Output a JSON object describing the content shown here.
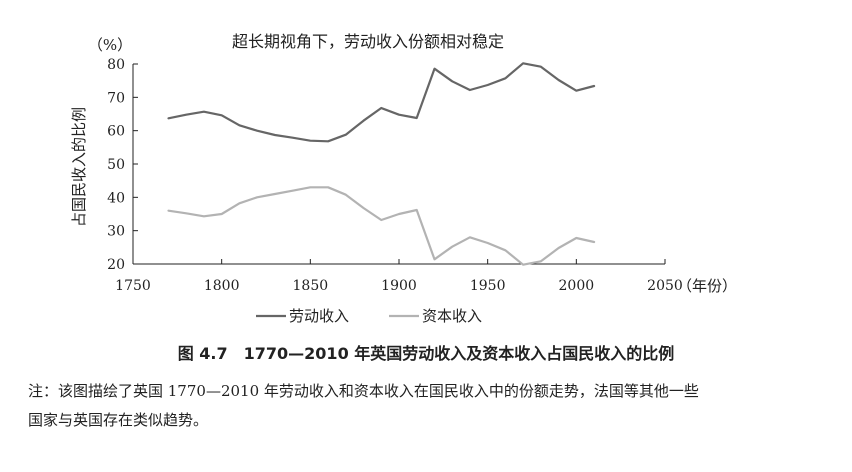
{
  "chart_data": {
    "type": "line",
    "title": "超长期视角下，劳动收入份额相对稳定",
    "unit_label": "（%）",
    "ylabel": "占国民收入的比例",
    "xlabel": "（年份）",
    "xlim": [
      1750,
      2050
    ],
    "ylim": [
      20,
      80
    ],
    "x_ticks": [
      1750,
      1800,
      1850,
      1900,
      1950,
      2000,
      2050
    ],
    "y_ticks": [
      20,
      30,
      40,
      50,
      60,
      70,
      80
    ],
    "grid": false,
    "legend_position": "bottom",
    "x": [
      1770,
      1780,
      1790,
      1800,
      1810,
      1820,
      1830,
      1840,
      1850,
      1860,
      1870,
      1880,
      1890,
      1900,
      1910,
      1920,
      1930,
      1940,
      1950,
      1960,
      1970,
      1980,
      1990,
      2000,
      2010
    ],
    "series": [
      {
        "name": "劳动收入",
        "color": "#666666",
        "values": [
          63.7,
          64.8,
          65.7,
          64.6,
          61.6,
          60,
          58.7,
          57.9,
          57,
          56.8,
          58.8,
          63,
          66.8,
          64.8,
          63.8,
          78.6,
          74.8,
          72.2,
          73.7,
          75.7,
          80.2,
          79.2,
          75.2,
          72,
          73.4
        ]
      },
      {
        "name": "资本收入",
        "color": "#b3b3b3",
        "values": [
          36,
          35.2,
          34.3,
          35,
          38.2,
          40,
          41,
          42,
          43,
          43,
          40.8,
          36.8,
          33.2,
          35,
          36.2,
          21.4,
          25.2,
          28,
          26.3,
          24.1,
          19.8,
          20.8,
          24.8,
          27.8,
          26.6
        ]
      }
    ]
  },
  "caption": "图 4.7　1770—2010 年英国劳动收入及资本收入占国民收入的比例",
  "note_lines": [
    "注：该图描绘了英国 1770—2010 年劳动收入和资本收入在国民收入中的份额走势，法国等其他一些",
    "国家与英国存在类似趋势。"
  ]
}
